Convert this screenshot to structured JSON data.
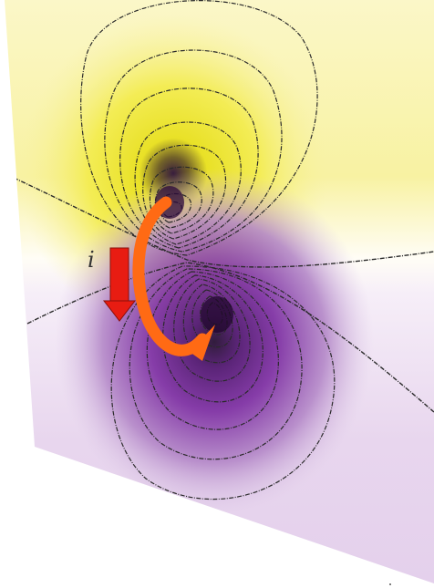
{
  "figure": {
    "current_label": "i",
    "colors": {
      "positive_lobe": "#f4ee46",
      "negative_lobe": "#7a1fa0",
      "contour_line": "#2a2a2a",
      "current_arrow": "#e81c12",
      "curl_arrow": "#ff6a14",
      "pole_dark": "#2c0a3c"
    }
  }
}
